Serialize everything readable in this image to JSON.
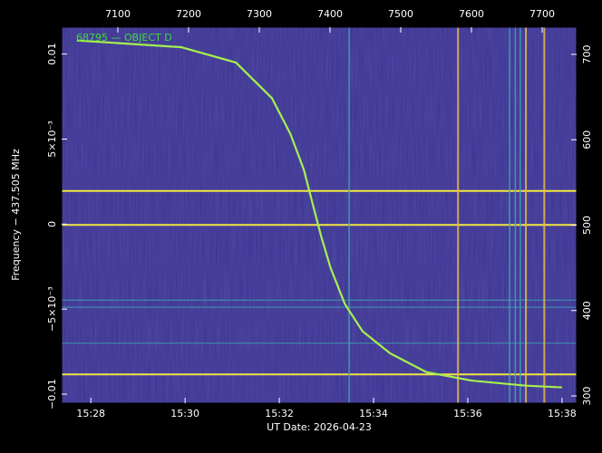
{
  "chart_data": {
    "type": "line",
    "x_label": "UT Date: 2026-04-23",
    "y_label": "Frequency − 437.505 MHz",
    "xlim": [
      7020.5,
      7748.7
    ],
    "xticks": [
      7100,
      7200,
      7300,
      7400,
      7500,
      7600,
      7700
    ],
    "x2lim": [
      27.38,
      38.31
    ],
    "x2ticks": [
      {
        "value": 28,
        "label": "15:28"
      },
      {
        "value": 30,
        "label": "15:30"
      },
      {
        "value": 32,
        "label": "15:32"
      },
      {
        "value": 34,
        "label": "15:34"
      },
      {
        "value": 36,
        "label": "15:36"
      },
      {
        "value": 38,
        "label": "15:38"
      }
    ],
    "ylim": [
      -0.01053,
      0.01158
    ],
    "yticks": [
      {
        "value": -0.01,
        "label": "−0.01"
      },
      {
        "value": -0.005,
        "label": "−5×10⁻³"
      },
      0,
      {
        "value": 0.005,
        "label": "5×10⁻³"
      },
      0.01
    ],
    "y2lim": [
      291.5,
      731.8
    ],
    "y2ticks": [
      300,
      400,
      500,
      600,
      700
    ],
    "series": [
      {
        "name": "68795 — OBJECT D",
        "color": "#a6f04e",
        "x": [
          7042,
          7190,
          7267,
          7318,
          7344,
          7363,
          7376,
          7388,
          7401,
          7421,
          7446,
          7485,
          7536,
          7600,
          7677,
          7728
        ],
        "values": [
          0.0108,
          0.0104,
          0.0095,
          0.0074,
          0.0053,
          0.0032,
          0.0011,
          -0.0008,
          -0.0026,
          -0.0047,
          -0.0063,
          -0.0076,
          -0.0087,
          -0.0092,
          -0.0095,
          -0.0096
        ]
      }
    ],
    "hlines": [
      {
        "value": 0.00195,
        "color": "#f2e640"
      },
      {
        "value": -5e-05,
        "color": "#f2e640"
      },
      {
        "value": -0.00884,
        "color": "#f2e640"
      },
      {
        "value": -0.00447,
        "color": "#3fa6b8"
      },
      {
        "value": -0.00489,
        "color": "#3fa6b8"
      },
      {
        "value": -0.007,
        "color": "#3fa6b8"
      }
    ],
    "vlines": [
      {
        "value": 7581,
        "color": "#e8b84a"
      },
      {
        "value": 7677,
        "color": "#e8b84a"
      },
      {
        "value": 7703,
        "color": "#e8b84a"
      },
      {
        "value": 7427,
        "color": "#3fa6b8"
      },
      {
        "value": 7654,
        "color": "#3fa6b8"
      },
      {
        "value": 7662,
        "color": "#3fa6b8"
      },
      {
        "value": 7669,
        "color": "#3fa6b8"
      }
    ]
  }
}
